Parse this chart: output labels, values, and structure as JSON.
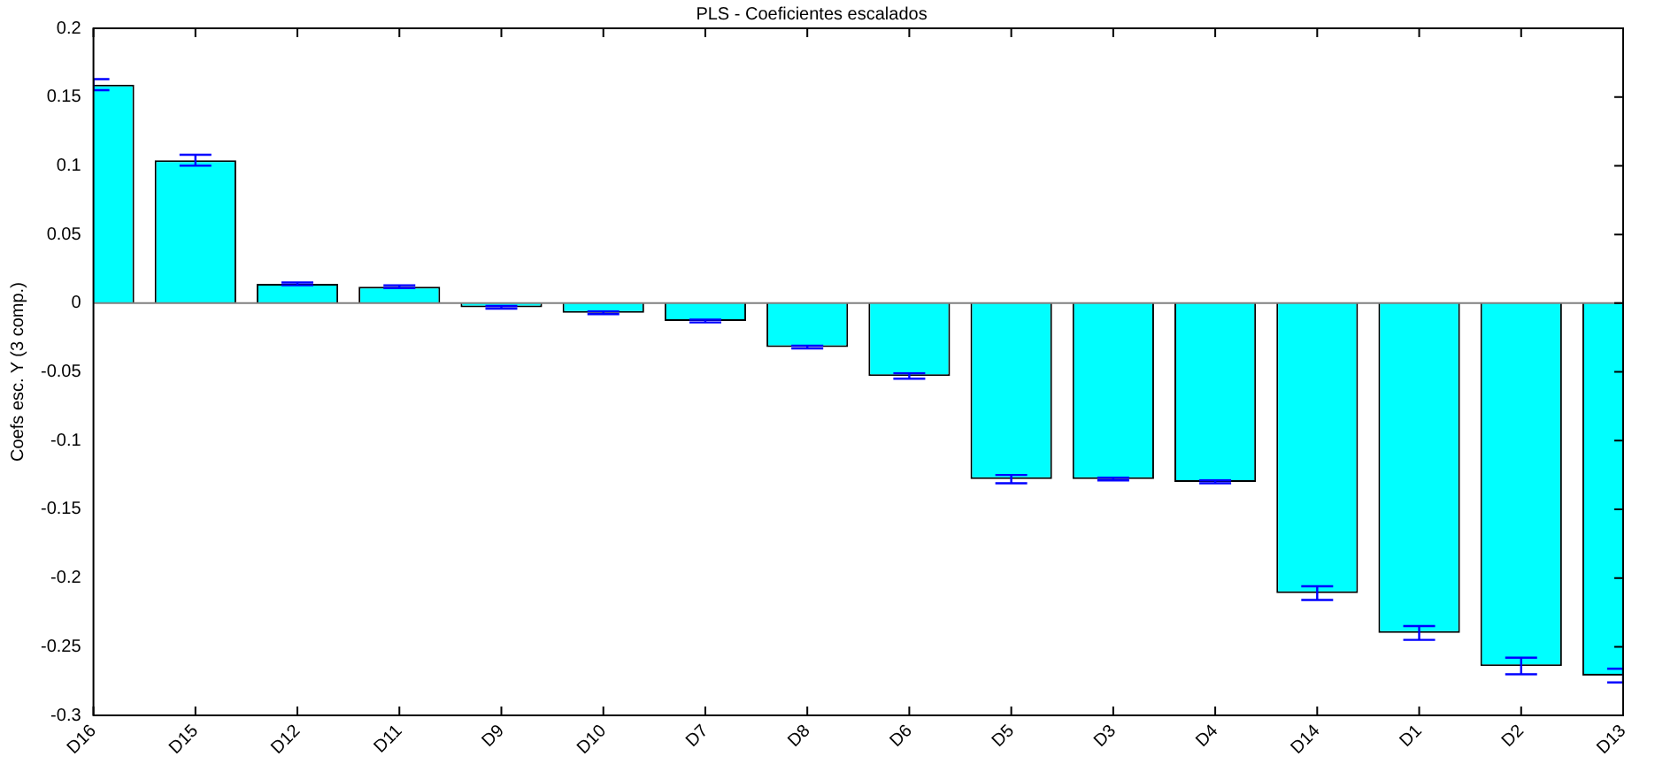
{
  "chart_data": {
    "type": "bar",
    "title": "PLS - Coeficientes escalados",
    "ylabel": "Coefs esc. Y (3 comp.)",
    "categories": [
      "D16",
      "D15",
      "D12",
      "D11",
      "D9",
      "D10",
      "D7",
      "D8",
      "D6",
      "D5",
      "D3",
      "D4",
      "D14",
      "D1",
      "D2",
      "D13"
    ],
    "values": [
      0.159,
      0.104,
      0.014,
      0.012,
      -0.003,
      -0.007,
      -0.013,
      -0.032,
      -0.053,
      -0.128,
      -0.128,
      -0.13,
      -0.211,
      -0.24,
      -0.264,
      -0.271
    ],
    "errors": [
      0.004,
      0.004,
      0.001,
      0.001,
      0.001,
      0.001,
      0.001,
      0.001,
      0.002,
      0.003,
      0.001,
      0.001,
      0.005,
      0.005,
      0.006,
      0.005
    ],
    "color": "#00ffff",
    "ylim": [
      -0.3,
      0.2
    ],
    "yticks": [
      -0.3,
      -0.25,
      -0.2,
      -0.15,
      -0.1,
      -0.05,
      0,
      0.05,
      0.1,
      0.15,
      0.2
    ],
    "ref_lines": [
      {
        "axis": "y",
        "value": 0,
        "color": "#808080"
      }
    ],
    "grid": false,
    "legend": false
  }
}
